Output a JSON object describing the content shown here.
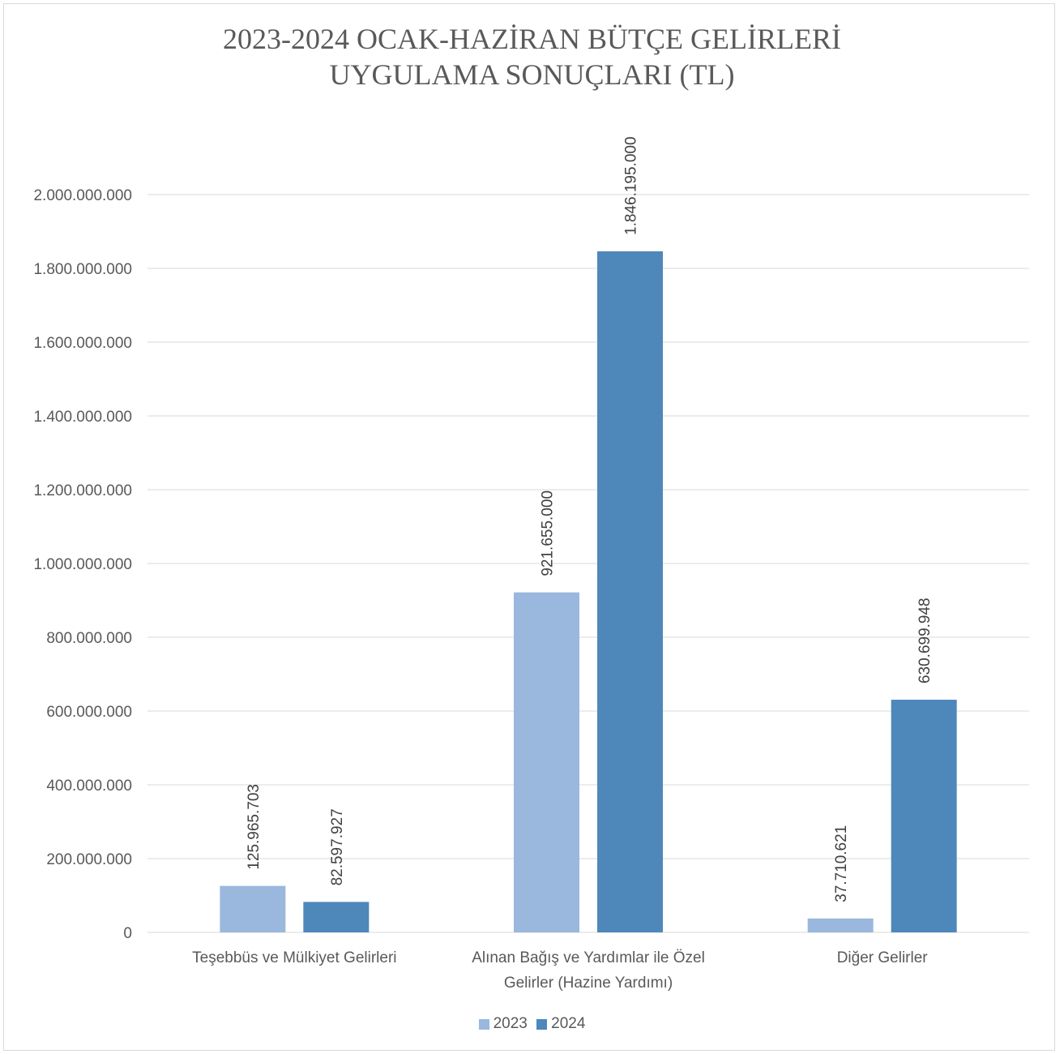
{
  "chart_data": {
    "type": "bar",
    "title_lines": [
      "2023-2024 OCAK-HAZİRAN BÜTÇE GELİRLERİ",
      "UYGULAMA SONUÇLARI (TL)"
    ],
    "categories": [
      [
        "Teşebbüs ve Mülkiyet Gelirleri"
      ],
      [
        "Alınan Bağış ve Yardımlar ile Özel",
        "Gelirler (Hazine Yardımı)"
      ],
      [
        "Diğer Gelirler"
      ]
    ],
    "series": [
      {
        "name": "2023",
        "color": "#9ab8de",
        "values": [
          125965703,
          921655000,
          37710621
        ],
        "labels": [
          "125.965.703",
          "921.655.000",
          "37.710.621"
        ]
      },
      {
        "name": "2024",
        "color": "#4e88bb",
        "values": [
          82597927,
          1846195000,
          630699948
        ],
        "labels": [
          "82.597.927",
          "1.846.195.000",
          "630.699.948"
        ]
      }
    ],
    "ylim": [
      0,
      2000000000
    ],
    "yticks": [
      0,
      200000000,
      400000000,
      600000000,
      800000000,
      1000000000,
      1200000000,
      1400000000,
      1600000000,
      1800000000,
      2000000000
    ],
    "ytick_labels": [
      "0",
      "200.000.000",
      "400.000.000",
      "600.000.000",
      "800.000.000",
      "1.000.000.000",
      "1.200.000.000",
      "1.400.000.000",
      "1.600.000.000",
      "1.800.000.000",
      "2.000.000.000"
    ],
    "grid": true,
    "legend_position": "bottom"
  }
}
